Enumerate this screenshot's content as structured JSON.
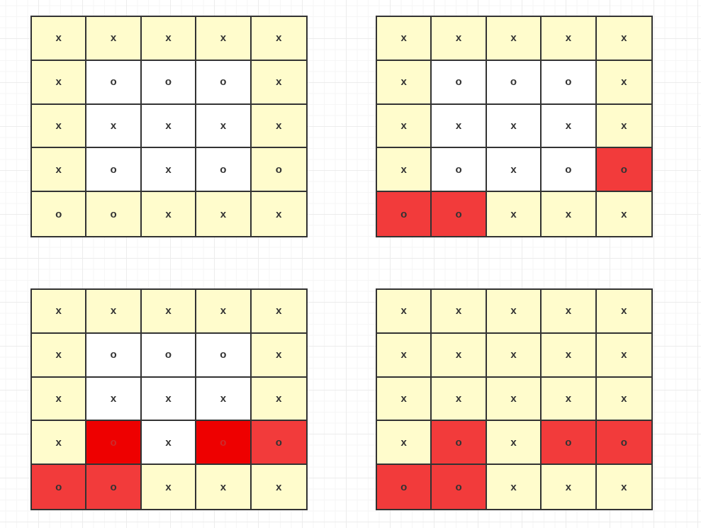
{
  "colors": {
    "border": "#333333",
    "border_cell": "#fffccc",
    "inner_cell": "#ffffff",
    "marked_cell": "#f23b3b",
    "highlight_cell": "#ee0000"
  },
  "grids": [
    {
      "values": [
        [
          "x",
          "x",
          "x",
          "x",
          "x"
        ],
        [
          "x",
          "o",
          "o",
          "o",
          "x"
        ],
        [
          "x",
          "x",
          "x",
          "x",
          "x"
        ],
        [
          "x",
          "o",
          "x",
          "o",
          "o"
        ],
        [
          "o",
          "o",
          "x",
          "x",
          "x"
        ]
      ],
      "fills": [
        [
          "y",
          "y",
          "y",
          "y",
          "y"
        ],
        [
          "y",
          "w",
          "w",
          "w",
          "y"
        ],
        [
          "y",
          "w",
          "w",
          "w",
          "y"
        ],
        [
          "y",
          "w",
          "w",
          "w",
          "y"
        ],
        [
          "y",
          "y",
          "y",
          "y",
          "y"
        ]
      ]
    },
    {
      "values": [
        [
          "x",
          "x",
          "x",
          "x",
          "x"
        ],
        [
          "x",
          "o",
          "o",
          "o",
          "x"
        ],
        [
          "x",
          "x",
          "x",
          "x",
          "x"
        ],
        [
          "x",
          "o",
          "x",
          "o",
          "o"
        ],
        [
          "o",
          "o",
          "x",
          "x",
          "x"
        ]
      ],
      "fills": [
        [
          "y",
          "y",
          "y",
          "y",
          "y"
        ],
        [
          "y",
          "w",
          "w",
          "w",
          "y"
        ],
        [
          "y",
          "w",
          "w",
          "w",
          "y"
        ],
        [
          "y",
          "w",
          "w",
          "w",
          "r"
        ],
        [
          "r",
          "r",
          "y",
          "y",
          "y"
        ]
      ]
    },
    {
      "values": [
        [
          "x",
          "x",
          "x",
          "x",
          "x"
        ],
        [
          "x",
          "o",
          "o",
          "o",
          "x"
        ],
        [
          "x",
          "x",
          "x",
          "x",
          "x"
        ],
        [
          "x",
          "o",
          "x",
          "o",
          "o"
        ],
        [
          "o",
          "o",
          "x",
          "x",
          "x"
        ]
      ],
      "fills": [
        [
          "y",
          "y",
          "y",
          "y",
          "y"
        ],
        [
          "y",
          "w",
          "w",
          "w",
          "y"
        ],
        [
          "y",
          "w",
          "w",
          "w",
          "y"
        ],
        [
          "y",
          "R",
          "w",
          "R",
          "r"
        ],
        [
          "r",
          "r",
          "y",
          "y",
          "y"
        ]
      ]
    },
    {
      "values": [
        [
          "x",
          "x",
          "x",
          "x",
          "x"
        ],
        [
          "x",
          "x",
          "x",
          "x",
          "x"
        ],
        [
          "x",
          "x",
          "x",
          "x",
          "x"
        ],
        [
          "x",
          "o",
          "x",
          "o",
          "o"
        ],
        [
          "o",
          "o",
          "x",
          "x",
          "x"
        ]
      ],
      "fills": [
        [
          "y",
          "y",
          "y",
          "y",
          "y"
        ],
        [
          "y",
          "y",
          "y",
          "y",
          "y"
        ],
        [
          "y",
          "y",
          "y",
          "y",
          "y"
        ],
        [
          "y",
          "r",
          "y",
          "r",
          "r"
        ],
        [
          "r",
          "r",
          "y",
          "y",
          "y"
        ]
      ]
    }
  ]
}
